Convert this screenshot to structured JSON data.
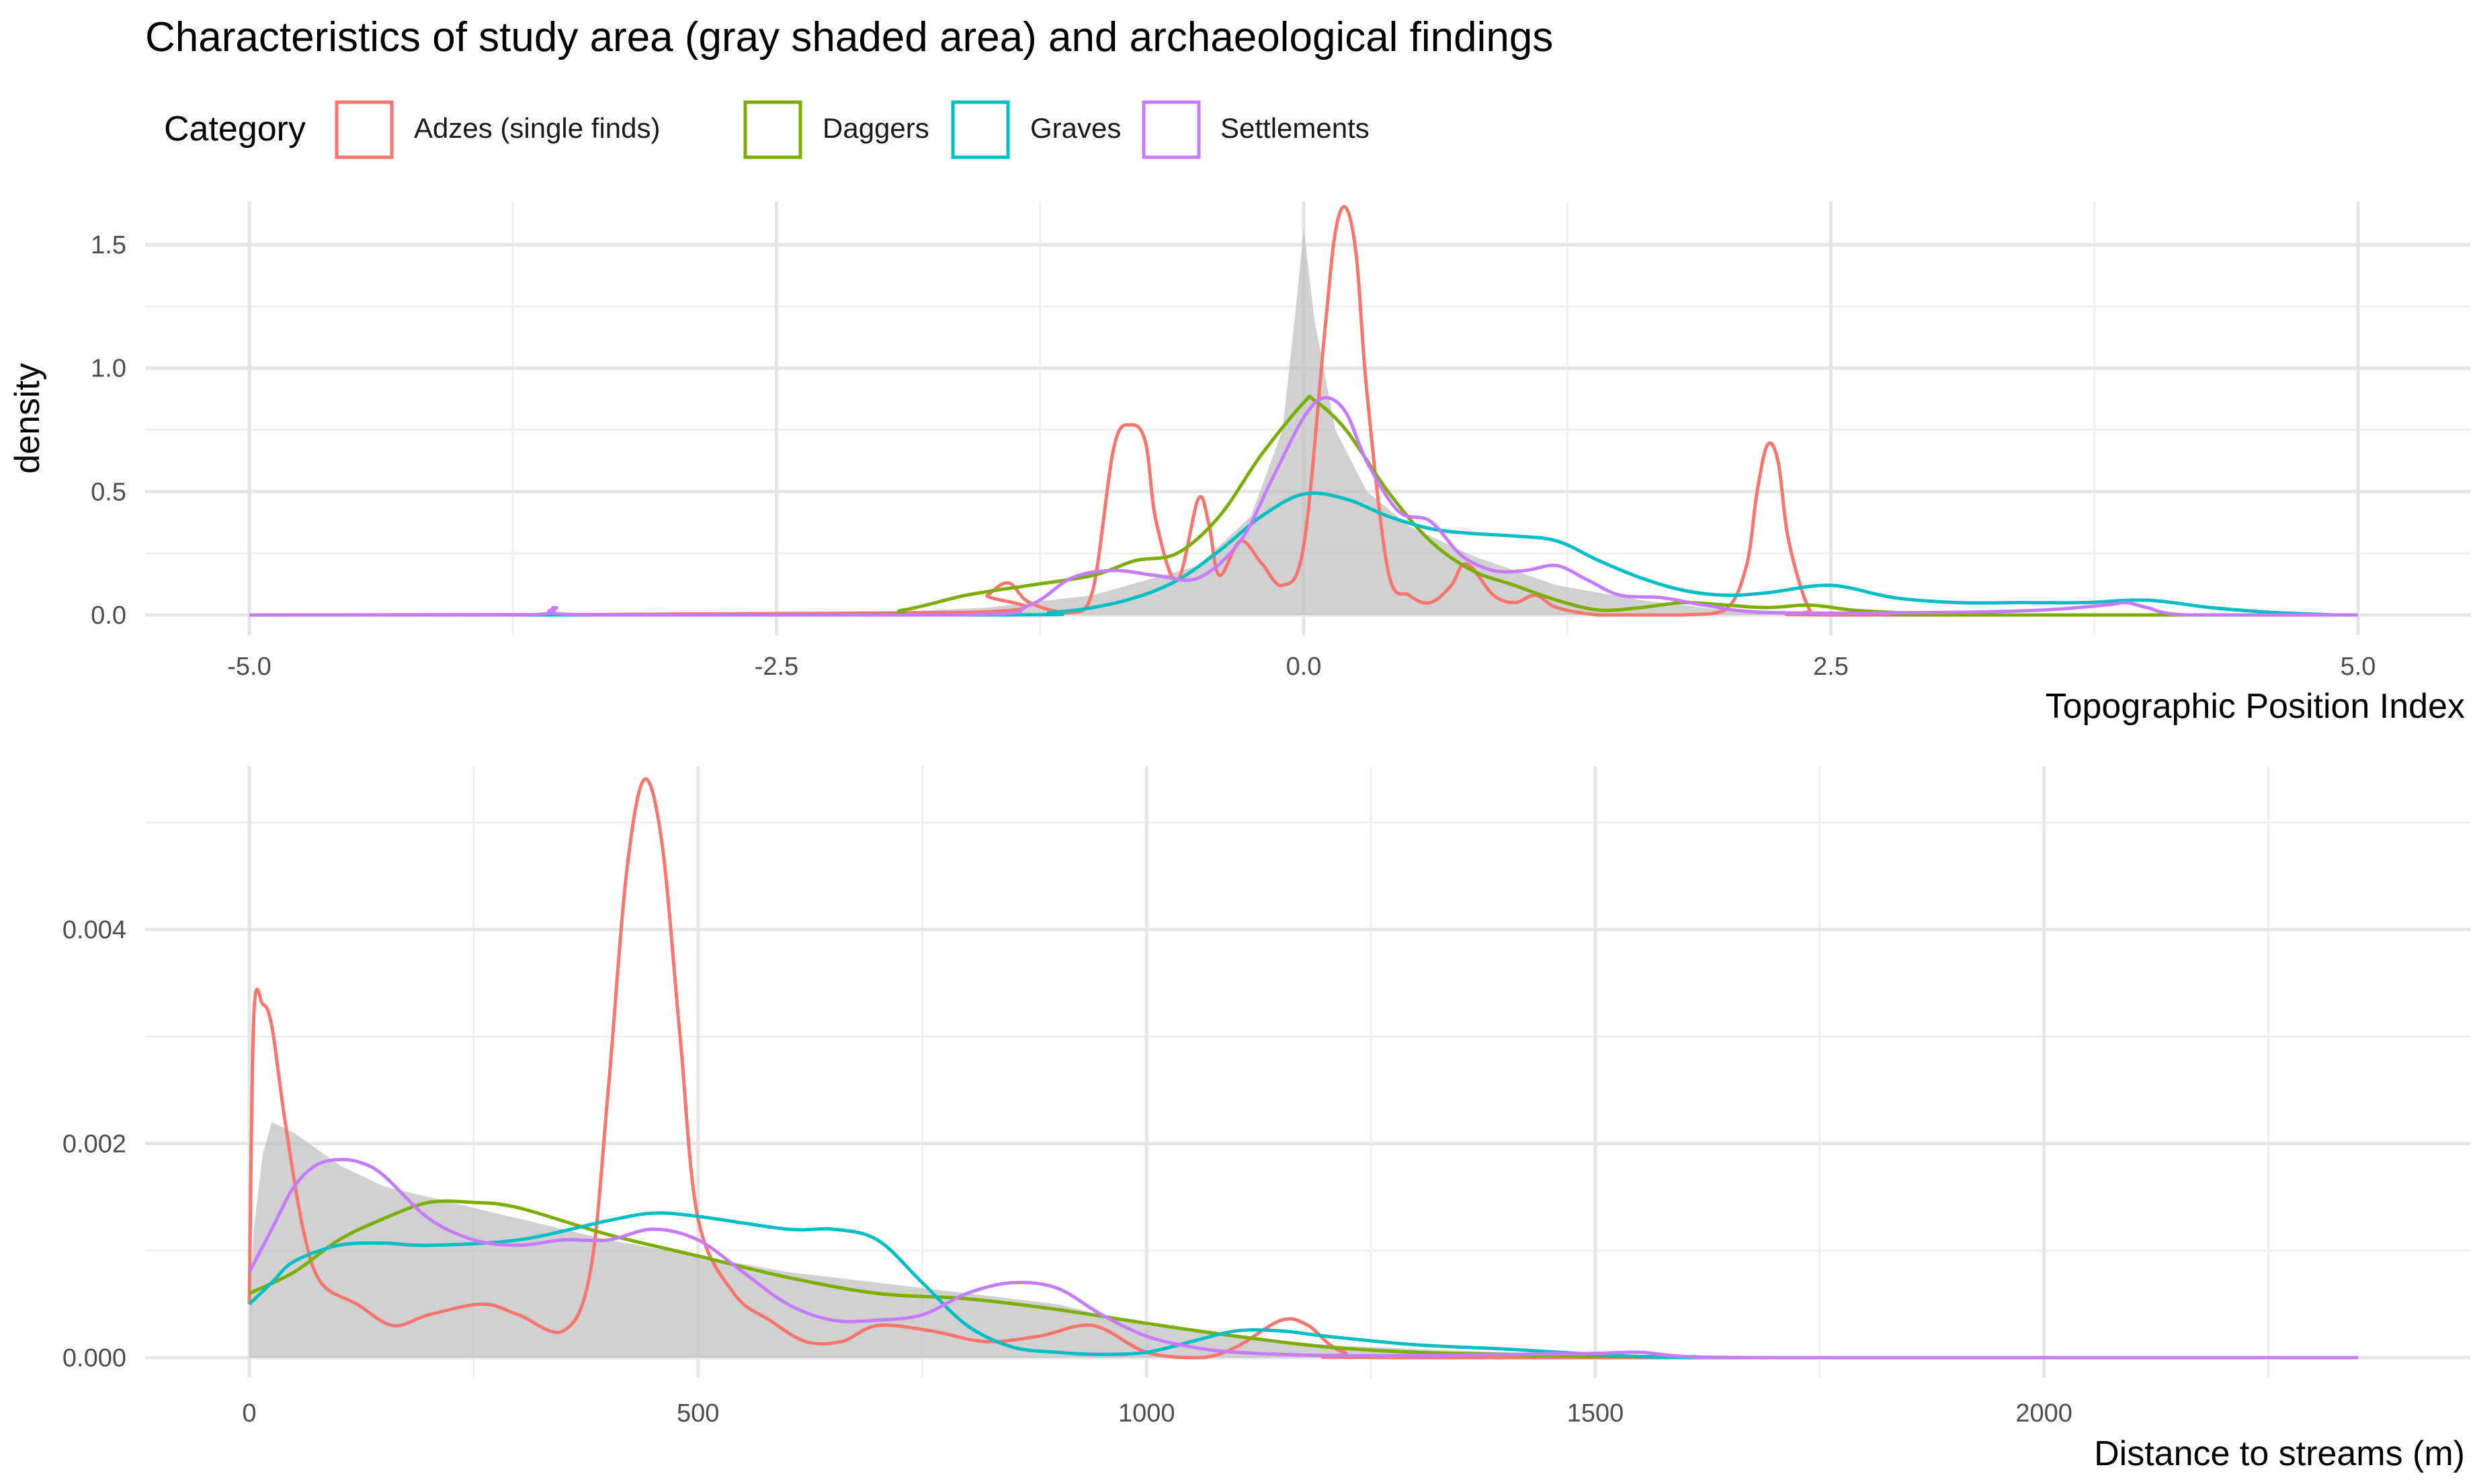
{
  "title": "Characteristics of study area (gray shaded area) and archaeological findings",
  "legend": {
    "title": "Category",
    "items": [
      {
        "label": "Adzes (single finds)",
        "color": "#F8766D"
      },
      {
        "label": "Daggers",
        "color": "#7CAE00"
      },
      {
        "label": "Graves",
        "color": "#00BFC4"
      },
      {
        "label": "Settlements",
        "color": "#C77CFF"
      }
    ],
    "position": "top"
  },
  "study_area_color": "#BEBEBE",
  "chart_data": [
    {
      "type": "area",
      "xlabel": "Topographic Position Index",
      "ylabel": "density",
      "xlim": [
        -5.0,
        5.0
      ],
      "ylim": [
        0,
        1.62
      ],
      "xticks": [
        "-5.0",
        "-2.5",
        "0.0",
        "2.5",
        "5.0"
      ],
      "xtick_values": [
        -5.0,
        -2.5,
        0.0,
        2.5,
        5.0
      ],
      "yticks": [
        "0.0",
        "0.5",
        "1.0",
        "1.5"
      ],
      "ytick_values": [
        0.0,
        0.5,
        1.0,
        1.5
      ],
      "grid": true,
      "study_area": {
        "x": [
          -5.0,
          -3.0,
          -2.0,
          -1.5,
          -1.0,
          -0.5,
          -0.25,
          -0.1,
          -0.03,
          0.0,
          0.05,
          0.15,
          0.3,
          0.5,
          0.8,
          1.2,
          1.6,
          2.0,
          2.5,
          3.0,
          5.0
        ],
        "y": [
          0.0,
          0.0,
          0.01,
          0.03,
          0.08,
          0.2,
          0.4,
          0.75,
          1.3,
          1.57,
          1.2,
          0.75,
          0.5,
          0.36,
          0.24,
          0.12,
          0.06,
          0.02,
          0.01,
          0.0,
          0.0
        ]
      },
      "series": [
        {
          "name": "Adzes (single finds)",
          "x": [
            -5.0,
            -1.6,
            -1.5,
            -1.4,
            -1.3,
            -1.1,
            -1.0,
            -0.9,
            -0.82,
            -0.75,
            -0.7,
            -0.6,
            -0.5,
            -0.45,
            -0.4,
            -0.3,
            -0.2,
            -0.1,
            0.0,
            0.1,
            0.15,
            0.2,
            0.25,
            0.3,
            0.4,
            0.5,
            0.6,
            0.7,
            0.75,
            0.8,
            0.9,
            1.0,
            1.1,
            1.2,
            1.4,
            1.6,
            1.8,
            2.0,
            2.1,
            2.15,
            2.2,
            2.25,
            2.3,
            2.4,
            2.5,
            5.0
          ],
          "y": [
            0.0,
            0.01,
            0.08,
            0.13,
            0.05,
            0.01,
            0.1,
            0.68,
            0.77,
            0.7,
            0.38,
            0.14,
            0.47,
            0.37,
            0.16,
            0.3,
            0.21,
            0.12,
            0.28,
            1.15,
            1.55,
            1.65,
            1.45,
            0.9,
            0.18,
            0.08,
            0.05,
            0.12,
            0.2,
            0.19,
            0.08,
            0.05,
            0.08,
            0.03,
            0.0,
            0.0,
            0.0,
            0.02,
            0.2,
            0.5,
            0.69,
            0.62,
            0.3,
            0.02,
            0.0,
            0.0
          ]
        },
        {
          "name": "Daggers",
          "x": [
            -5.0,
            -2.2,
            -1.9,
            -1.6,
            -1.3,
            -1.0,
            -0.8,
            -0.6,
            -0.4,
            -0.2,
            0.0,
            0.05,
            0.2,
            0.4,
            0.6,
            0.8,
            1.0,
            1.2,
            1.4,
            1.6,
            1.8,
            2.0,
            2.2,
            2.4,
            2.6,
            2.8,
            3.0,
            5.0
          ],
          "y": [
            0.0,
            0.0,
            0.02,
            0.08,
            0.12,
            0.16,
            0.22,
            0.25,
            0.4,
            0.65,
            0.86,
            0.87,
            0.75,
            0.5,
            0.3,
            0.18,
            0.12,
            0.06,
            0.02,
            0.03,
            0.05,
            0.04,
            0.03,
            0.04,
            0.02,
            0.01,
            0.0,
            0.0
          ]
        },
        {
          "name": "Graves",
          "x": [
            -5.0,
            -1.5,
            -1.2,
            -1.0,
            -0.8,
            -0.6,
            -0.4,
            -0.2,
            0.0,
            0.2,
            0.4,
            0.6,
            0.8,
            1.0,
            1.2,
            1.4,
            1.6,
            1.8,
            2.0,
            2.2,
            2.5,
            2.8,
            3.1,
            3.4,
            3.7,
            4.0,
            4.3,
            4.6,
            4.9,
            5.0
          ],
          "y": [
            0.0,
            0.0,
            0.01,
            0.03,
            0.07,
            0.14,
            0.26,
            0.4,
            0.49,
            0.47,
            0.4,
            0.35,
            0.33,
            0.32,
            0.3,
            0.22,
            0.15,
            0.1,
            0.08,
            0.09,
            0.12,
            0.07,
            0.05,
            0.05,
            0.05,
            0.06,
            0.03,
            0.01,
            0.0,
            0.0
          ]
        },
        {
          "name": "Settlements",
          "x": [
            -5.0,
            -3.7,
            -3.55,
            -3.4,
            -1.6,
            -1.3,
            -1.1,
            -0.9,
            -0.7,
            -0.5,
            -0.3,
            -0.15,
            0.0,
            0.1,
            0.2,
            0.3,
            0.45,
            0.6,
            0.75,
            0.9,
            1.05,
            1.2,
            1.35,
            1.5,
            1.7,
            1.9,
            2.2,
            3.0,
            3.5,
            3.8,
            3.9,
            4.0,
            4.2,
            5.0
          ],
          "y": [
            0.0,
            0.0,
            0.03,
            0.0,
            0.0,
            0.04,
            0.15,
            0.18,
            0.16,
            0.15,
            0.3,
            0.55,
            0.8,
            0.88,
            0.82,
            0.62,
            0.42,
            0.38,
            0.24,
            0.18,
            0.18,
            0.2,
            0.14,
            0.08,
            0.07,
            0.04,
            0.01,
            0.01,
            0.02,
            0.04,
            0.05,
            0.03,
            0.0,
            0.0
          ]
        }
      ]
    },
    {
      "type": "area",
      "xlabel": "Distance to streams (m)",
      "ylabel": "",
      "xlim": [
        0,
        2350
      ],
      "ylim": [
        0,
        0.0054
      ],
      "xticks": [
        "0",
        "500",
        "1000",
        "1500",
        "2000"
      ],
      "xtick_values": [
        0,
        500,
        1000,
        1500,
        2000
      ],
      "yticks": [
        "0.000",
        "0.002",
        "0.004"
      ],
      "ytick_values": [
        0.0,
        0.002,
        0.004
      ],
      "grid": true,
      "study_area": {
        "x": [
          0,
          5,
          15,
          25,
          50,
          100,
          150,
          200,
          300,
          400,
          500,
          600,
          700,
          800,
          900,
          1000,
          1100,
          1200,
          1300,
          1400,
          1500,
          1600,
          1700,
          2350
        ],
        "y": [
          0.0004,
          0.0012,
          0.0019,
          0.0022,
          0.0021,
          0.0018,
          0.0016,
          0.0015,
          0.0013,
          0.0011,
          0.00095,
          0.0008,
          0.0007,
          0.0006,
          0.0005,
          0.0003,
          0.0002,
          0.00012,
          8e-05,
          5e-05,
          3e-05,
          1e-05,
          0.0,
          0.0
        ]
      },
      "series": [
        {
          "name": "Adzes (single finds)",
          "x": [
            0,
            5,
            15,
            25,
            40,
            60,
            80,
            120,
            160,
            200,
            260,
            300,
            350,
            380,
            400,
            420,
            440,
            460,
            480,
            500,
            540,
            580,
            620,
            660,
            700,
            760,
            820,
            880,
            940,
            1000,
            1060,
            1100,
            1150,
            1180,
            1220,
            1300,
            2350
          ],
          "y": [
            0.0005,
            0.0032,
            0.0033,
            0.0031,
            0.0022,
            0.0012,
            0.0007,
            0.0005,
            0.0003,
            0.0004,
            0.0005,
            0.0004,
            0.00025,
            0.0008,
            0.0025,
            0.0045,
            0.0054,
            0.0048,
            0.003,
            0.0013,
            0.0006,
            0.00035,
            0.00015,
            0.00015,
            0.0003,
            0.00025,
            0.00015,
            0.0002,
            0.0003,
            5e-05,
            0.0,
            0.0001,
            0.00035,
            0.0003,
            5e-05,
            0.0,
            0.0
          ]
        },
        {
          "name": "Daggers",
          "x": [
            0,
            50,
            100,
            150,
            200,
            250,
            300,
            400,
            500,
            600,
            700,
            800,
            900,
            1000,
            1100,
            1200,
            1300,
            1400,
            1500,
            1600,
            1700,
            2350
          ],
          "y": [
            0.0006,
            0.0008,
            0.0011,
            0.0013,
            0.00145,
            0.00145,
            0.0014,
            0.00115,
            0.00095,
            0.00075,
            0.0006,
            0.00055,
            0.00045,
            0.00032,
            0.0002,
            0.0001,
            5e-05,
            3e-05,
            1e-05,
            1e-05,
            0.0,
            0.0
          ]
        },
        {
          "name": "Graves",
          "x": [
            0,
            25,
            50,
            100,
            150,
            200,
            300,
            400,
            450,
            500,
            600,
            650,
            700,
            750,
            800,
            850,
            900,
            950,
            1000,
            1050,
            1100,
            1150,
            1200,
            1300,
            1400,
            1500,
            1550,
            1600,
            1700,
            2350
          ],
          "y": [
            0.0005,
            0.0007,
            0.0009,
            0.00105,
            0.00107,
            0.00105,
            0.0011,
            0.00128,
            0.00135,
            0.00132,
            0.0012,
            0.0012,
            0.0011,
            0.0007,
            0.0003,
            0.0001,
            5e-05,
            3e-05,
            5e-05,
            0.00015,
            0.00025,
            0.00025,
            0.0002,
            0.00012,
            8e-05,
            3e-05,
            1e-05,
            0.0,
            0.0,
            0.0
          ]
        },
        {
          "name": "Settlements",
          "x": [
            0,
            25,
            50,
            75,
            100,
            125,
            150,
            200,
            250,
            300,
            350,
            400,
            450,
            500,
            550,
            600,
            650,
            700,
            750,
            800,
            850,
            900,
            950,
            1000,
            1050,
            1100,
            1200,
            1300,
            1400,
            1500,
            1550,
            1600,
            1700,
            2350
          ],
          "y": [
            0.0008,
            0.0012,
            0.0016,
            0.0018,
            0.00185,
            0.00182,
            0.0017,
            0.0013,
            0.0011,
            0.00105,
            0.0011,
            0.0011,
            0.0012,
            0.0011,
            0.0008,
            0.0005,
            0.00035,
            0.00035,
            0.0004,
            0.0006,
            0.0007,
            0.00065,
            0.0004,
            0.0002,
            0.0001,
            5e-05,
            2e-05,
            2e-05,
            3e-05,
            4e-05,
            5e-05,
            1e-05,
            0.0,
            0.0
          ]
        }
      ]
    }
  ]
}
